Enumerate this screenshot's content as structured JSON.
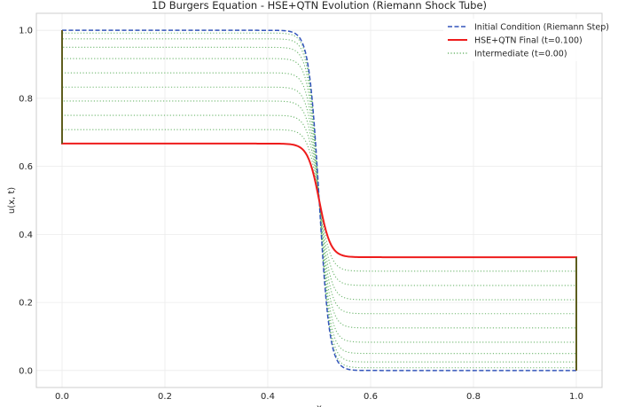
{
  "chart_data": {
    "type": "line",
    "title": "1D Burgers Equation - HSE+QTN Evolution (Riemann Shock Tube)",
    "xlabel": "x",
    "ylabel": "u(x, t)",
    "xlim": [
      -0.05,
      1.05
    ],
    "ylim": [
      -0.05,
      1.05
    ],
    "xticks": [
      "0.0",
      "0.2",
      "0.4",
      "0.6",
      "0.8",
      "1.0"
    ],
    "yticks": [
      "0.0",
      "0.2",
      "0.4",
      "0.6",
      "0.8",
      "1.0"
    ],
    "grid": true,
    "legend_position": "top-right",
    "series": [
      {
        "name": "Initial Condition (Riemann Step)",
        "style": "dashed",
        "color": "#3355bb",
        "left_value": 1.0,
        "right_value": 0.0,
        "center": 0.5,
        "transition_width": 0.02
      },
      {
        "name": "HSE+QTN Final (t=0.100)",
        "style": "solid",
        "color": "#ee1c1c",
        "left_value": 0.667,
        "right_value": 0.333,
        "center": 0.5,
        "transition_width": 0.022
      },
      {
        "name": "Intermediate (t=0.00)",
        "style": "dotted",
        "color": "#55aa55",
        "levels": [
          {
            "left_value": 0.992,
            "right_value": 0.008
          },
          {
            "left_value": 0.975,
            "right_value": 0.025
          },
          {
            "left_value": 0.95,
            "right_value": 0.05
          },
          {
            "left_value": 0.917,
            "right_value": 0.083
          },
          {
            "left_value": 0.875,
            "right_value": 0.125
          },
          {
            "left_value": 0.833,
            "right_value": 0.167
          },
          {
            "left_value": 0.792,
            "right_value": 0.208
          },
          {
            "left_value": 0.75,
            "right_value": 0.25
          },
          {
            "left_value": 0.708,
            "right_value": 0.292
          }
        ]
      }
    ],
    "boundary_series": {
      "name": "",
      "color": "#1f7a1f",
      "points": [
        [
          0.0,
          1.0
        ],
        [
          0.0,
          0.667
        ],
        [
          1.0,
          0.333
        ],
        [
          1.0,
          0.0
        ]
      ]
    },
    "colors": {
      "grid": "#ebebeb",
      "axes": "#cccccc",
      "background": "#ffffff"
    }
  }
}
